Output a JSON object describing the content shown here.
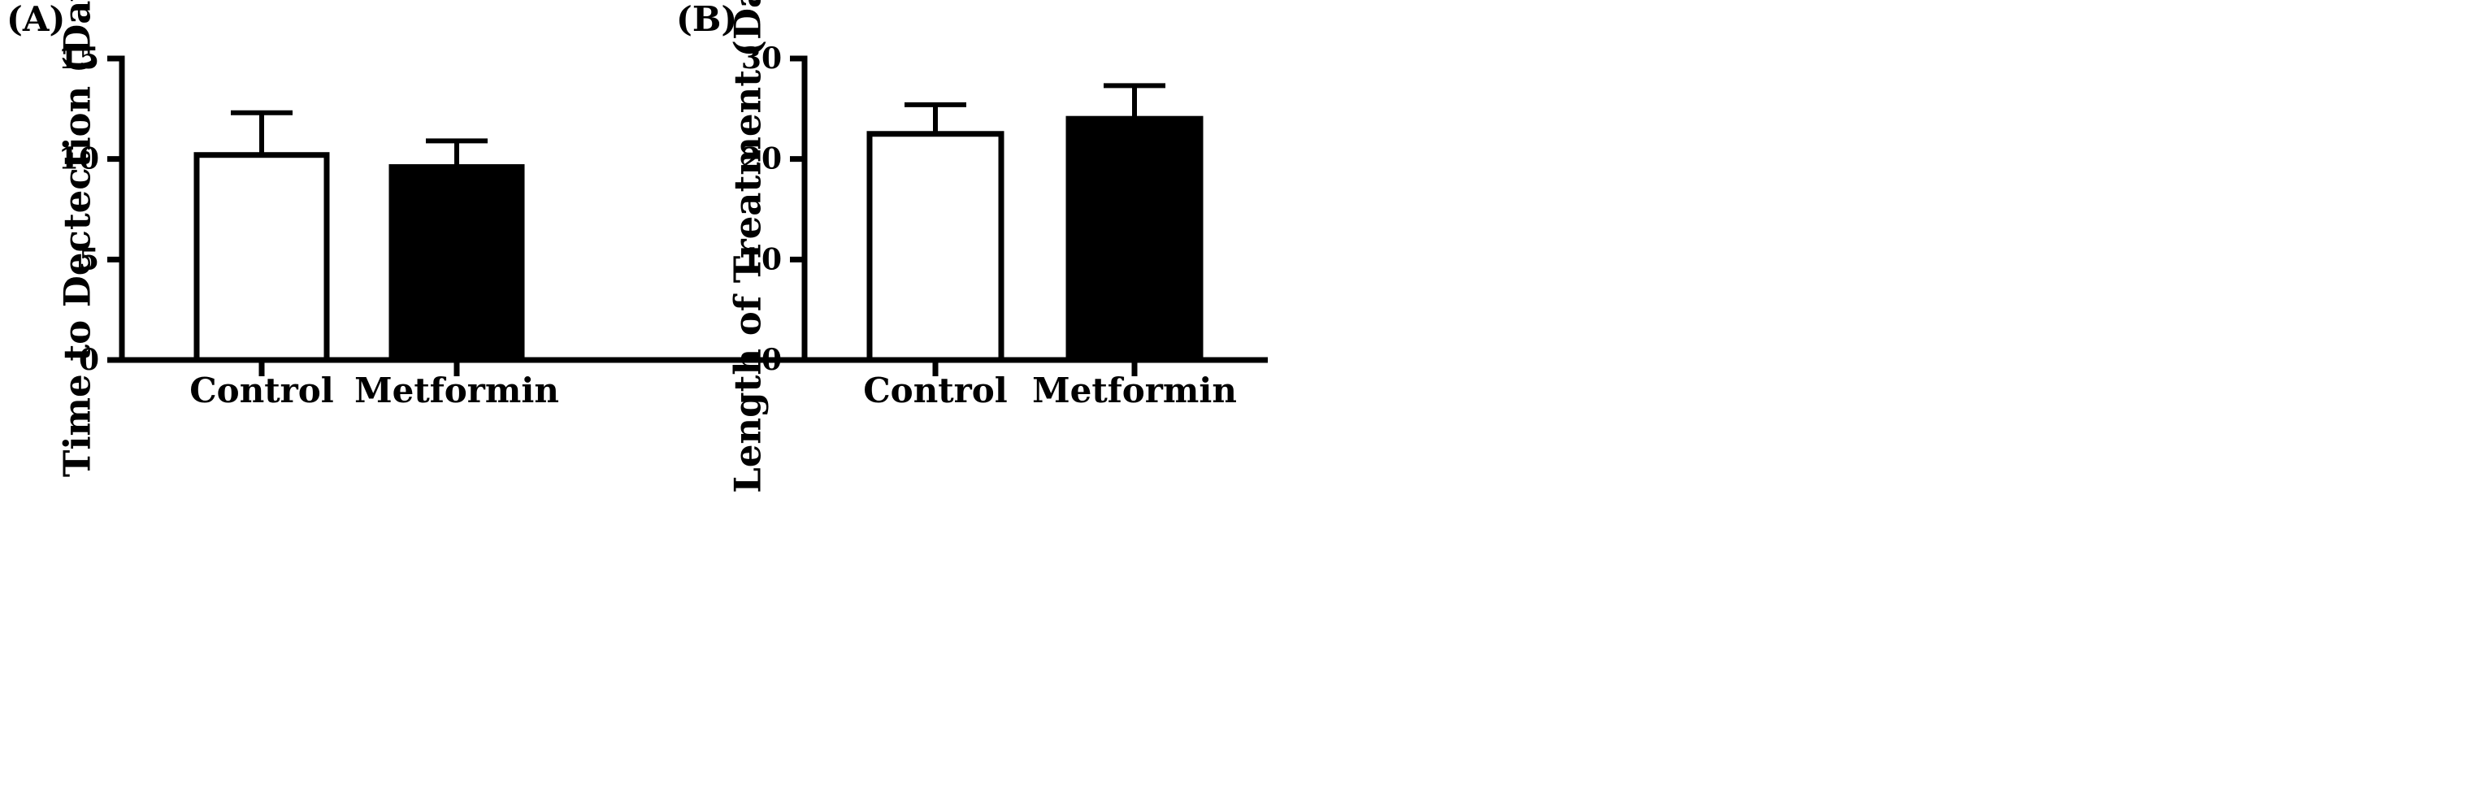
{
  "chart_data": [
    {
      "type": "bar",
      "panel_label": "(A)",
      "ylabel": "Time to Dectection (Days)",
      "xlabel": "",
      "categories": [
        "Control",
        "Metformin"
      ],
      "values": [
        10.2,
        9.6
      ],
      "errors": [
        2.1,
        1.3
      ],
      "bar_fills": [
        "#ffffff",
        "#000000"
      ],
      "ylim": [
        0,
        15
      ],
      "yticks": [
        0,
        5,
        10,
        15
      ],
      "ytick_labels": [
        "0",
        "5",
        "10",
        "15"
      ],
      "grid": false,
      "legend": "none"
    },
    {
      "type": "bar",
      "panel_label": "(B)",
      "ylabel": "Length of Treatment (Days)",
      "xlabel": "",
      "categories": [
        "Control",
        "Metformin"
      ],
      "values": [
        22.5,
        24.0
      ],
      "errors": [
        2.9,
        3.3
      ],
      "bar_fills": [
        "#ffffff",
        "#000000"
      ],
      "ylim": [
        0,
        30
      ],
      "yticks": [
        0,
        10,
        20,
        30
      ],
      "ytick_labels": [
        "0",
        "10",
        "20",
        "30"
      ],
      "grid": false,
      "legend": "none"
    }
  ]
}
